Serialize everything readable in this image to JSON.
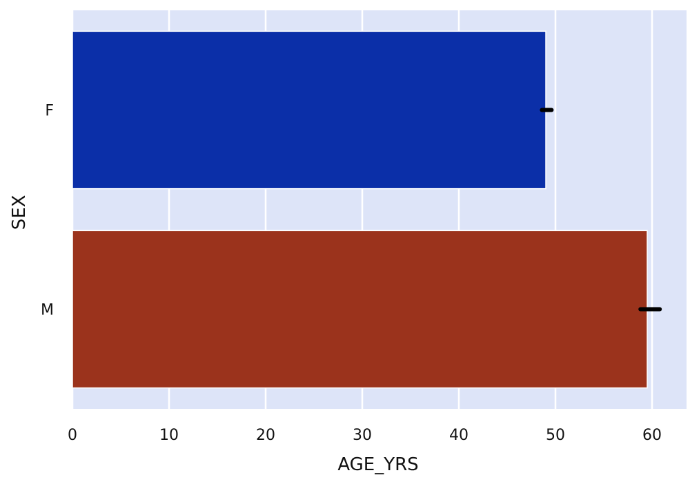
{
  "chart_data": {
    "type": "bar",
    "orientation": "horizontal",
    "categories": [
      "F",
      "M"
    ],
    "values": [
      49.0,
      59.5
    ],
    "error_bars": [
      [
        48.6,
        49.6
      ],
      [
        58.8,
        60.8
      ]
    ],
    "bar_colors": [
      "#0b2fa8",
      "#9b331c"
    ],
    "error_color": "#000000",
    "plot_background": "#dde4f8",
    "grid_color": "#ffffff",
    "xlabel": "AGE_YRS",
    "ylabel": "SEX",
    "xlim": [
      0,
      63.5
    ],
    "xticks": [
      0,
      10,
      20,
      30,
      40,
      50,
      60
    ],
    "grid": true
  }
}
